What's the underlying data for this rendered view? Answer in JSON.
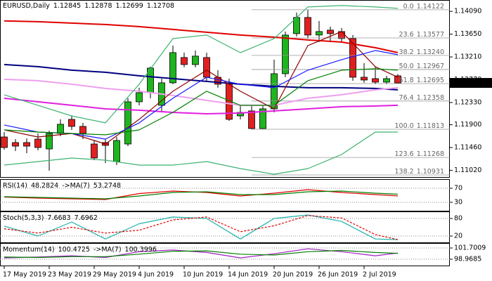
{
  "chart_data": [
    {
      "type": "candlestick",
      "title": "EURUSD,Daily",
      "categories": [
        "17 May 2019",
        null,
        null,
        null,
        "23 May 2019",
        null,
        null,
        null,
        "29 May 2019",
        null,
        null,
        null,
        "4 Jun 2019",
        null,
        null,
        null,
        "10 Jun 2019",
        null,
        null,
        null,
        "14 Jun 2019",
        null,
        null,
        null,
        "20 Jun 2019",
        null,
        null,
        null,
        "26 Jun 2019",
        null,
        null,
        null,
        "2 Jul 2019",
        null,
        null,
        null
      ],
      "open": [
        1.11664,
        1.11556,
        1.11556,
        1.11623,
        1.11433,
        1.11732,
        1.12004,
        1.11868,
        1.11528,
        1.11556,
        1.11189,
        1.11528,
        1.12343,
        1.1252,
        1.12275,
        1.1271,
        1.13199,
        1.13063,
        1.13199,
        1.12818,
        1.1271,
        1.12071,
        1.12167,
        1.11827,
        1.12207,
        1.12886,
        1.1366,
        1.13973,
        1.13633,
        1.13728,
        1.13701,
        1.13565,
        1.12818,
        1.12791,
        1.12723,
        1.12845
      ],
      "high": [
        1.11759,
        1.11623,
        1.11637,
        1.11732,
        1.11786,
        1.12004,
        1.12071,
        1.11936,
        1.11596,
        1.11623,
        1.11664,
        1.12411,
        1.12615,
        1.13022,
        1.12791,
        1.13429,
        1.13294,
        1.13334,
        1.13294,
        1.12954,
        1.12791,
        1.12275,
        1.12275,
        1.12275,
        1.13158,
        1.13701,
        1.14068,
        1.14122,
        1.13905,
        1.13796,
        1.13769,
        1.13633,
        1.1309,
        1.13022,
        1.12845,
        1.12878
      ],
      "low": [
        1.1142,
        1.11392,
        1.11352,
        1.11406,
        1.11012,
        1.11678,
        1.118,
        1.11623,
        1.11216,
        1.11162,
        1.11121,
        1.11487,
        1.12275,
        1.12411,
        1.12139,
        1.12683,
        1.13009,
        1.13009,
        1.1275,
        1.12615,
        1.11976,
        1.12004,
        1.11813,
        1.1182,
        1.12139,
        1.12818,
        1.13606,
        1.13565,
        1.13497,
        1.13497,
        1.13497,
        1.1275,
        1.1271,
        1.12683,
        1.12683,
        1.12699
      ],
      "close": [
        1.1146,
        1.11487,
        1.11487,
        1.1146,
        1.11732,
        1.11909,
        1.11868,
        1.11732,
        1.11257,
        1.11501,
        1.11596,
        1.12343,
        1.1252,
        1.12995,
        1.1271,
        1.13294,
        1.13063,
        1.13226,
        1.12818,
        1.12683,
        1.12004,
        1.12139,
        1.11827,
        1.12207,
        1.12886,
        1.13633,
        1.13973,
        1.13633,
        1.13701,
        1.1366,
        1.13565,
        1.12818,
        1.12764,
        1.12723,
        1.12791,
        1.12708
      ],
      "up_color": "#1fb51f",
      "down_color": "#e02020",
      "x": [
        0,
        3,
        6,
        9,
        12,
        15,
        18,
        21,
        24,
        27,
        30,
        33,
        35
      ],
      "series": [
        {
          "color": "#e00000",
          "values": [
            1.13905,
            1.13891,
            1.13864,
            1.13837,
            1.13796,
            1.13742,
            1.13687,
            1.13633,
            1.13592,
            1.13538,
            1.13497,
            1.13389,
            1.13294
          ]
        },
        {
          "color": "#000080",
          "values": [
            1.13063,
            1.13022,
            1.12954,
            1.12913,
            1.12845,
            1.12791,
            1.12737,
            1.12683,
            1.12642,
            1.12615,
            1.12615,
            1.12601,
            1.12574
          ]
        },
        {
          "color": "#e020e0",
          "values": [
            1.12411,
            1.12343,
            1.12275,
            1.12207,
            1.1218,
            1.12139,
            1.12112,
            1.12126,
            1.12167,
            1.12207,
            1.12248,
            1.12262,
            1.12275
          ]
        },
        {
          "color": "#eea0ee",
          "values": [
            1.12778,
            1.1275,
            1.12683,
            1.12601,
            1.12547,
            1.12465,
            1.1237,
            1.12275,
            1.12275,
            1.12411,
            1.12479,
            1.12574,
            1.12615
          ]
        },
        {
          "color": "#8b0000",
          "values": [
            1.118,
            1.11664,
            1.11732,
            1.11528,
            1.12004,
            1.12547,
            1.12954,
            1.12547,
            1.12207,
            1.13429,
            1.13701,
            1.13022,
            1.12818
          ]
        },
        {
          "color": "#1a1aff",
          "values": [
            1.11895,
            1.11759,
            1.11732,
            1.11623,
            1.11936,
            1.12411,
            1.12818,
            1.12683,
            1.12615,
            1.12954,
            1.13158,
            1.13334,
            1.13253
          ]
        },
        {
          "color": "#008000",
          "values": [
            1.118,
            1.11759,
            1.11732,
            1.11705,
            1.118,
            1.12139,
            1.12547,
            1.12275,
            1.12275,
            1.1275,
            1.12954,
            1.12981,
            1.12954
          ]
        },
        {
          "color": "#3cb371",
          "values": [
            1.12479,
            1.12275,
            1.12071,
            1.11936,
            1.12683,
            1.13565,
            1.13633,
            1.13294,
            1.13565,
            1.14176,
            1.14203,
            1.14176,
            1.14149
          ]
        },
        {
          "color": "#3cb371",
          "values": [
            1.11121,
            1.11189,
            1.11257,
            1.11216,
            1.11121,
            1.11121,
            1.11189,
            1.11053,
            1.10944,
            1.11053,
            1.11325,
            1.11759,
            1.11759
          ]
        }
      ],
      "ylim": [
        1.1089,
        1.1431
      ],
      "yticks": [
        {
          "value": 1.1409,
          "label": "1.14090"
        },
        {
          "value": 1.1365,
          "label": "1.13650"
        },
        {
          "value": 1.1321,
          "label": "1.13210"
        },
        {
          "value": 1.1277,
          "label": "1.12770"
        },
        {
          "value": 1.1233,
          "label": "1.12330"
        },
        {
          "value": 1.119,
          "label": "1.11900"
        },
        {
          "value": 1.1146,
          "label": "1.11460"
        },
        {
          "value": 1.1102,
          "label": "1.11020"
        }
      ],
      "fib_color": "#999999",
      "fib_levels": [
        {
          "level": "0.0",
          "price": 1.14122
        },
        {
          "level": "23.6",
          "price": 1.13577
        },
        {
          "level": "38.2",
          "price": {
            "value": 1.1324,
            "label": "1.13240"
          }
        },
        {
          "level": "50.0",
          "price": 1.12967
        },
        {
          "level": "61.8",
          "price": 1.12695
        },
        {
          "level": "76.4",
          "price": 1.12358
        },
        {
          "level": "100.0",
          "price": 1.11813
        },
        {
          "level": "123.6",
          "price": 1.11268
        },
        {
          "level": "138.2",
          "price": 1.10931
        }
      ]
    },
    {
      "type": "line",
      "title": "RSI(14)",
      "x": [
        0,
        3,
        6,
        9,
        12,
        15,
        18,
        21,
        24,
        27,
        30,
        33,
        35
      ],
      "series": [
        {
          "color": "#e00000",
          "values": [
            45,
            42,
            40,
            38,
            55,
            62,
            58,
            48,
            56,
            66,
            58,
            52,
            48.2824
          ]
        },
        {
          "name": "->MA(7)",
          "color": "#008000",
          "values": [
            46,
            44,
            42,
            40,
            48,
            58,
            60,
            52,
            52,
            60,
            62,
            56,
            53.2748
          ]
        }
      ],
      "ylim": [
        6,
        94
      ],
      "yticks": [
        70,
        30
      ]
    },
    {
      "type": "line",
      "title": "Stoch(5,3,3)",
      "x": [
        0,
        3,
        6,
        9,
        12,
        15,
        18,
        21,
        24,
        27,
        30,
        33,
        35
      ],
      "series": [
        {
          "color": "#20b2aa",
          "values": [
            54,
            20,
            68,
            10,
            62,
            85,
            80,
            10,
            80,
            92,
            70,
            10,
            7.6683
          ]
        },
        {
          "color": "#e00000",
          "style": "dashed",
          "values": [
            45,
            30,
            50,
            30,
            40,
            75,
            85,
            35,
            55,
            90,
            82,
            25,
            7.6962
          ]
        }
      ],
      "ylim": [
        -1.6,
        101.6
      ],
      "yticks": [
        80,
        20
      ]
    },
    {
      "type": "line",
      "title": "Momentum(14)",
      "x": [
        0,
        3,
        6,
        9,
        12,
        15,
        18,
        21,
        24,
        27,
        30,
        33,
        35
      ],
      "series": [
        {
          "color": "#a020c0",
          "values": [
            99.3,
            99.5,
            99.8,
            99.4,
            100.8,
            101.2,
            100.6,
            99.3,
            100.3,
            101.5,
            100.8,
            99.8,
            100.4725
          ]
        },
        {
          "name": "->MA(7)",
          "color": "#008000",
          "values": [
            99.5,
            99.4,
            99.6,
            99.6,
            100.2,
            100.9,
            101.0,
            100.2,
            100.0,
            100.8,
            101.1,
            100.6,
            100.3996
          ]
        }
      ],
      "ylim": [
        97.431,
        102.7257
      ],
      "yticks": [
        101.7009,
        98.9685
      ]
    }
  ]
}
